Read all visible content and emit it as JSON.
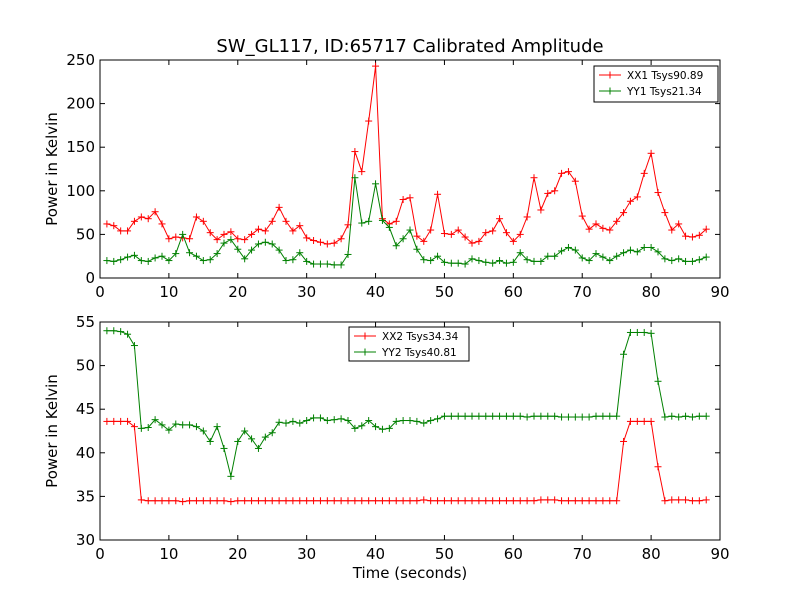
{
  "title": "SW_GL117, ID:65717 Calibrated Amplitude",
  "chart_data": [
    {
      "type": "line",
      "ylabel": "Power in Kelvin",
      "xlabel": "",
      "xlim": [
        0,
        90
      ],
      "ylim": [
        0,
        250
      ],
      "xticks": [
        0,
        10,
        20,
        30,
        40,
        50,
        60,
        70,
        80,
        90
      ],
      "yticks": [
        0,
        50,
        100,
        150,
        200,
        250
      ],
      "legend_position": "top-right",
      "x": [
        1,
        2,
        3,
        4,
        5,
        6,
        7,
        8,
        9,
        10,
        11,
        12,
        13,
        14,
        15,
        16,
        17,
        18,
        19,
        20,
        21,
        22,
        23,
        24,
        25,
        26,
        27,
        28,
        29,
        30,
        31,
        32,
        33,
        34,
        35,
        36,
        37,
        38,
        39,
        40,
        41,
        42,
        43,
        44,
        45,
        46,
        47,
        48,
        49,
        50,
        51,
        52,
        53,
        54,
        55,
        56,
        57,
        58,
        59,
        60,
        61,
        62,
        63,
        64,
        65,
        66,
        67,
        68,
        69,
        70,
        71,
        72,
        73,
        74,
        75,
        76,
        77,
        78,
        79,
        80,
        81,
        82,
        83,
        84,
        85,
        86,
        87,
        88
      ],
      "series": [
        {
          "name": "XX1 Tsys90.89",
          "color": "#ff0000",
          "values": [
            62,
            60,
            54,
            54,
            65,
            70,
            68,
            76,
            62,
            45,
            47,
            46,
            45,
            70,
            65,
            52,
            44,
            50,
            53,
            45,
            44,
            50,
            56,
            54,
            65,
            81,
            65,
            54,
            60,
            46,
            43,
            41,
            39,
            40,
            45,
            61,
            145,
            122,
            180,
            243,
            68,
            62,
            65,
            90,
            92,
            48,
            42,
            55,
            96,
            51,
            50,
            55,
            47,
            40,
            42,
            52,
            54,
            68,
            52,
            42,
            50,
            70,
            115,
            78,
            97,
            100,
            120,
            122,
            111,
            71,
            56,
            62,
            57,
            55,
            65,
            75,
            88,
            93,
            120,
            143,
            98,
            75,
            55,
            62,
            48,
            47,
            49,
            56
          ]
        },
        {
          "name": "YY1 Tsys21.34",
          "color": "#008000",
          "values": [
            20,
            19,
            21,
            24,
            26,
            20,
            19,
            23,
            25,
            20,
            28,
            50,
            29,
            25,
            20,
            21,
            28,
            40,
            44,
            33,
            22,
            32,
            39,
            41,
            39,
            32,
            20,
            21,
            29,
            19,
            16,
            16,
            16,
            15,
            15,
            27,
            115,
            63,
            65,
            108,
            66,
            58,
            37,
            45,
            55,
            33,
            21,
            20,
            25,
            18,
            17,
            17,
            16,
            22,
            20,
            18,
            17,
            20,
            17,
            18,
            29,
            21,
            19,
            19,
            25,
            25,
            31,
            35,
            32,
            23,
            20,
            28,
            24,
            20,
            25,
            29,
            32,
            30,
            35,
            35,
            30,
            22,
            20,
            22,
            19,
            19,
            21,
            24
          ]
        }
      ]
    },
    {
      "type": "line",
      "ylabel": "Power in Kelvin",
      "xlabel": "Time (seconds)",
      "xlim": [
        0,
        90
      ],
      "ylim": [
        30,
        55
      ],
      "xticks": [
        0,
        10,
        20,
        30,
        40,
        50,
        60,
        70,
        80,
        90
      ],
      "yticks": [
        30,
        35,
        40,
        45,
        50,
        55
      ],
      "legend_position": "top-center",
      "x": [
        1,
        2,
        3,
        4,
        5,
        6,
        7,
        8,
        9,
        10,
        11,
        12,
        13,
        14,
        15,
        16,
        17,
        18,
        19,
        20,
        21,
        22,
        23,
        24,
        25,
        26,
        27,
        28,
        29,
        30,
        31,
        32,
        33,
        34,
        35,
        36,
        37,
        38,
        39,
        40,
        41,
        42,
        43,
        44,
        45,
        46,
        47,
        48,
        49,
        50,
        51,
        52,
        53,
        54,
        55,
        56,
        57,
        58,
        59,
        60,
        61,
        62,
        63,
        64,
        65,
        66,
        67,
        68,
        69,
        70,
        71,
        72,
        73,
        74,
        75,
        76,
        77,
        78,
        79,
        80,
        81,
        82,
        83,
        84,
        85,
        86,
        87,
        88
      ],
      "series": [
        {
          "name": "XX2 Tsys34.34",
          "color": "#ff0000",
          "values": [
            43.6,
            43.6,
            43.6,
            43.6,
            43.0,
            34.6,
            34.5,
            34.5,
            34.5,
            34.5,
            34.5,
            34.4,
            34.5,
            34.5,
            34.5,
            34.5,
            34.5,
            34.5,
            34.4,
            34.5,
            34.5,
            34.5,
            34.5,
            34.5,
            34.5,
            34.5,
            34.5,
            34.5,
            34.5,
            34.5,
            34.5,
            34.5,
            34.5,
            34.5,
            34.5,
            34.5,
            34.5,
            34.5,
            34.5,
            34.5,
            34.5,
            34.5,
            34.5,
            34.5,
            34.5,
            34.5,
            34.6,
            34.5,
            34.5,
            34.5,
            34.5,
            34.5,
            34.5,
            34.5,
            34.5,
            34.5,
            34.5,
            34.5,
            34.5,
            34.5,
            34.5,
            34.5,
            34.5,
            34.6,
            34.6,
            34.6,
            34.5,
            34.5,
            34.5,
            34.5,
            34.5,
            34.5,
            34.5,
            34.5,
            34.5,
            41.3,
            43.6,
            43.6,
            43.6,
            43.6,
            38.4,
            34.5,
            34.6,
            34.6,
            34.6,
            34.5,
            34.5,
            34.6
          ]
        },
        {
          "name": "YY2 Tsys40.81",
          "color": "#008000",
          "values": [
            54.0,
            54.0,
            53.9,
            53.6,
            52.3,
            42.8,
            42.9,
            43.8,
            43.2,
            42.6,
            43.3,
            43.2,
            43.2,
            43.0,
            42.5,
            41.3,
            43.0,
            40.5,
            37.3,
            41.3,
            42.5,
            41.6,
            40.5,
            41.8,
            42.3,
            43.5,
            43.4,
            43.6,
            43.4,
            43.7,
            44.0,
            44.0,
            43.7,
            43.8,
            43.9,
            43.7,
            42.8,
            43.1,
            43.7,
            43.0,
            42.7,
            42.8,
            43.6,
            43.7,
            43.7,
            43.6,
            43.4,
            43.7,
            43.9,
            44.2,
            44.2,
            44.2,
            44.2,
            44.2,
            44.2,
            44.2,
            44.2,
            44.2,
            44.2,
            44.2,
            44.2,
            44.1,
            44.2,
            44.2,
            44.2,
            44.2,
            44.1,
            44.1,
            44.1,
            44.1,
            44.1,
            44.2,
            44.2,
            44.2,
            44.2,
            51.3,
            53.8,
            53.8,
            53.8,
            53.7,
            48.2,
            44.1,
            44.2,
            44.1,
            44.2,
            44.1,
            44.2,
            44.2
          ]
        }
      ]
    }
  ]
}
